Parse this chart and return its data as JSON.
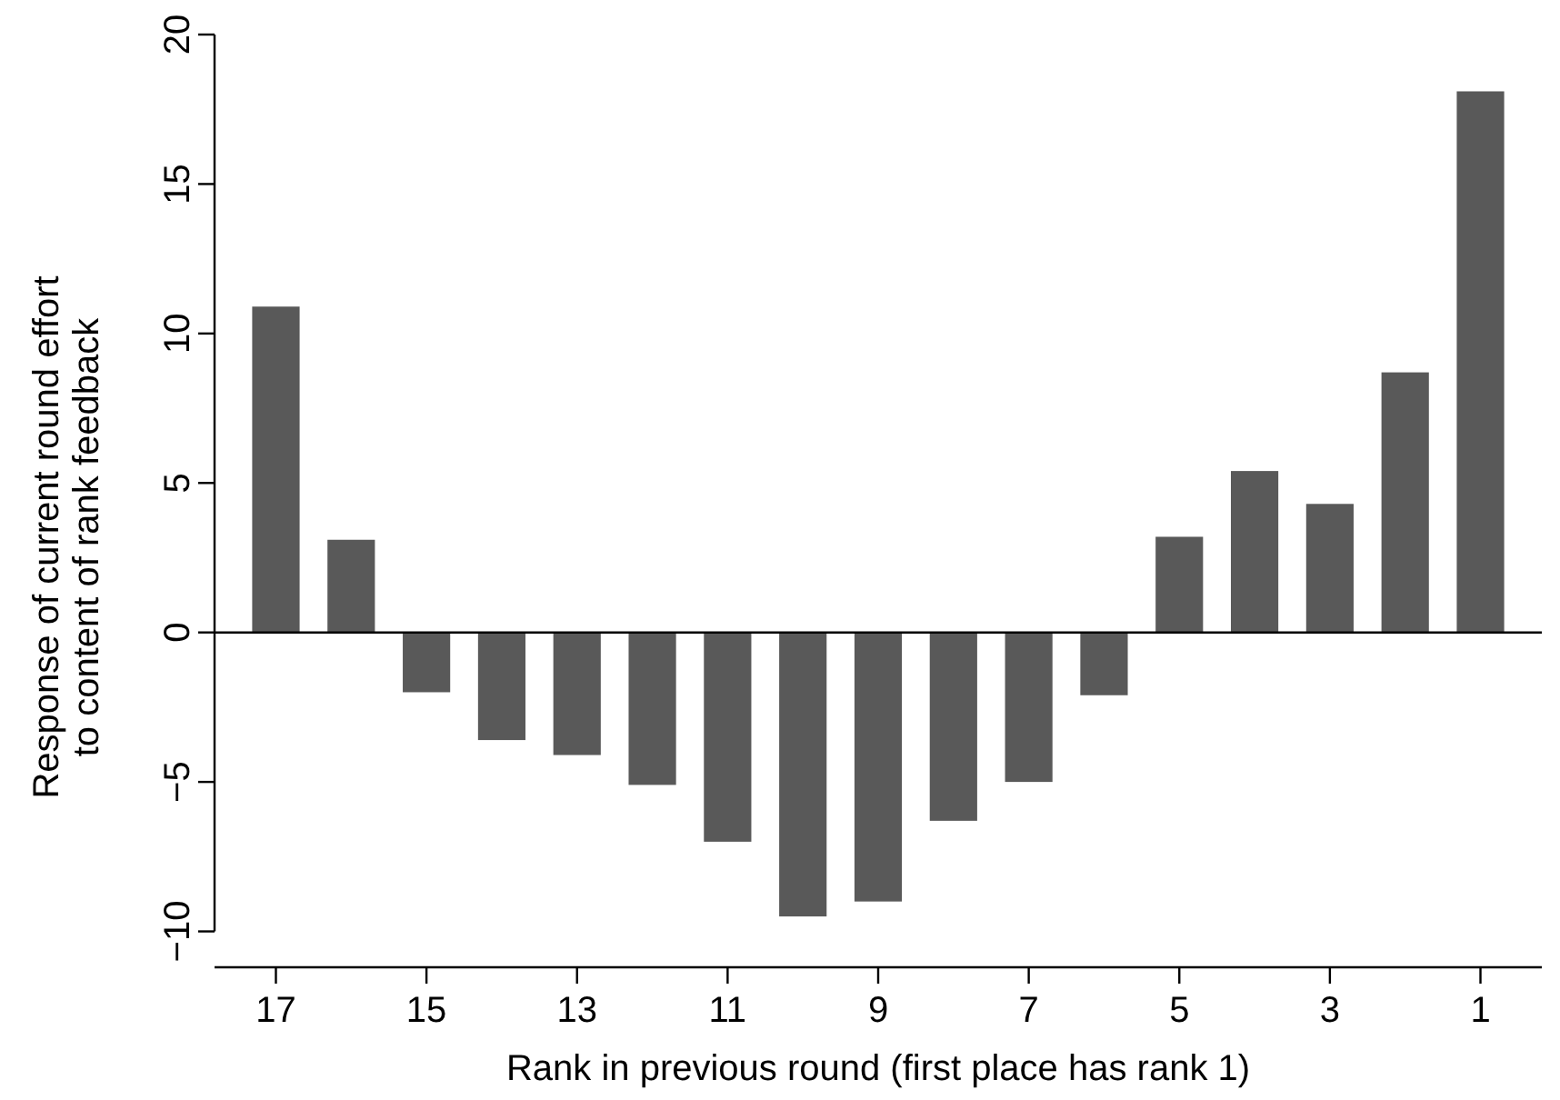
{
  "chart_data": {
    "type": "bar",
    "xlabel": "Rank in previous round (first place has rank 1)",
    "ylabel": "Response of current round effort\nto content of rank feedback",
    "categories": [
      "17",
      null,
      "15",
      null,
      "13",
      null,
      "11",
      null,
      "9",
      null,
      "7",
      null,
      "5",
      null,
      "3",
      null,
      "1"
    ],
    "values": [
      10.9,
      3.1,
      -2.0,
      -3.6,
      -4.1,
      -5.1,
      -7.0,
      -9.5,
      -9.0,
      -6.3,
      -5.0,
      -2.1,
      3.2,
      5.4,
      4.3,
      8.7,
      18.1
    ],
    "color": "#595959",
    "ylim": [
      -11.2,
      20
    ],
    "yticks": [
      {
        "value": -10,
        "label": "−10"
      },
      {
        "value": -5,
        "label": "−5"
      },
      0,
      5,
      10,
      15,
      20
    ],
    "ref_lines": [
      {
        "axis": "y",
        "value": 0,
        "color": "#000000"
      }
    ]
  }
}
